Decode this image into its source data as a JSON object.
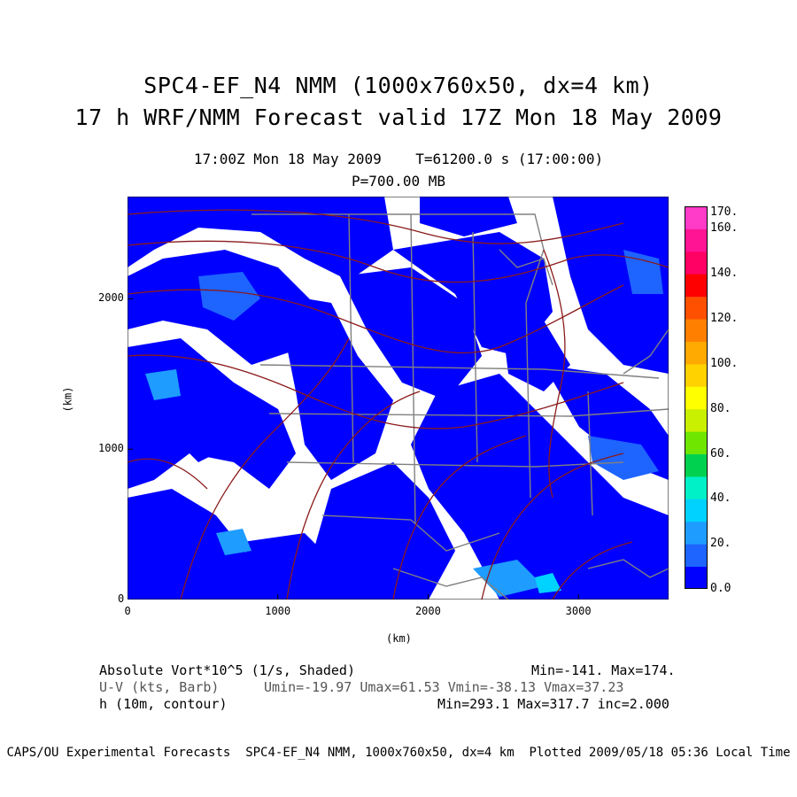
{
  "header": {
    "title_line1": "SPC4-EF_N4 NMM (1000x760x50, dx=4 km)",
    "title_line2": "17 h WRF/NMM Forecast valid 17Z Mon 18 May 2009",
    "time_line": "17:00Z Mon 18 May 2009    T=61200.0 s (17:00:00)",
    "level_line": "P=700.00 MB"
  },
  "axes": {
    "x_label": "(km)",
    "y_label": "(km)",
    "x_ticks": [
      "0",
      "1000",
      "2000",
      "3000"
    ],
    "y_ticks": [
      "0",
      "1000",
      "2000"
    ],
    "x_tick_values": [
      0,
      1000,
      2000,
      3000
    ],
    "y_tick_values": [
      0,
      1000,
      2000
    ],
    "x_range_km": [
      0,
      3600
    ],
    "y_range_km": [
      0,
      2680
    ]
  },
  "colorbar": {
    "labels": [
      "0.0",
      "20.",
      "40.",
      "60.",
      "80.",
      "100.",
      "120.",
      "140.",
      "160.",
      "170."
    ],
    "colors": [
      "#0000ff",
      "#1e64ff",
      "#1e9cff",
      "#00d2ff",
      "#00f0c8",
      "#00d250",
      "#6ee600",
      "#c8f000",
      "#ffff00",
      "#ffd200",
      "#ffaa00",
      "#ff8000",
      "#ff5000",
      "#ff0000",
      "#ff0064",
      "#ff1493",
      "#ff3cc8"
    ]
  },
  "legend": {
    "row1_name": "Absolute Vort*10^5 (1/s, Shaded)",
    "row1_stats": "Min=-141. Max=174.",
    "row2_name": "U-V (kts, Barb)",
    "row2_stats": "Umin=-19.97 Umax=61.53 Vmin=-38.13 Vmax=37.23",
    "row3_name": "h (10m, contour)",
    "row3_stats": "Min=293.1 Max=317.7 inc=2.000"
  },
  "footer": {
    "text": "CAPS/OU Experimental Forecasts  SPC4-EF_N4 NMM, 1000x760x50, dx=4 km  Plotted 2009/05/18 05:36 Local Time"
  },
  "colors": {
    "shade_main": "#0000ff",
    "shade_light": "#1e64ff",
    "contour": "#8b1a1a",
    "borders": "#808080"
  }
}
